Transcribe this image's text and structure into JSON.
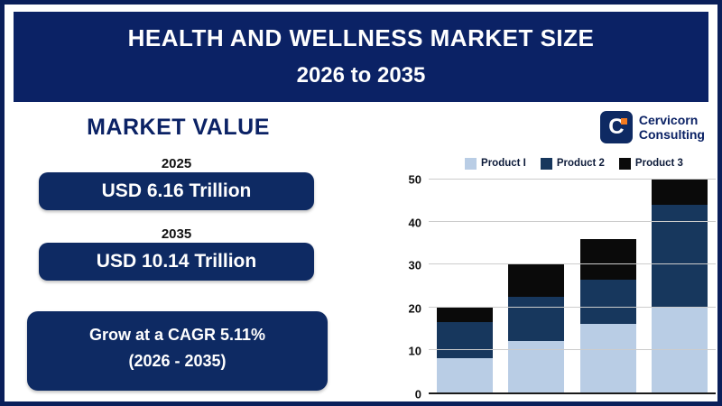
{
  "header": {
    "title_line1": "HEALTH AND WELLNESS MARKET SIZE",
    "title_line2": "2026 to 2035"
  },
  "left_panel": {
    "heading": "MARKET VALUE",
    "items": [
      {
        "year": "2025",
        "value": "USD 6.16 Trillion"
      },
      {
        "year": "2035",
        "value": "USD 10.14 Trillion"
      }
    ],
    "cagr_line1": "Grow at a CAGR 5.11%",
    "cagr_line2": "(2026 - 2035)"
  },
  "logo": {
    "initial": "C",
    "name_line1": "Cervicorn",
    "name_line2": "Consulting"
  },
  "colors": {
    "navy": "#0b2265",
    "pill_navy": "#0e2a63",
    "orange_accent": "#f47b20",
    "light_blue": "#b9cde5",
    "dark_blue": "#17375d",
    "black": "#0a0a0a"
  },
  "chart_data": {
    "type": "bar",
    "stacked": true,
    "categories": [
      "",
      "",
      "",
      ""
    ],
    "series": [
      {
        "name": "Product I",
        "color": "#b9cde5",
        "values": [
          8,
          12,
          16,
          20
        ]
      },
      {
        "name": "Product 2",
        "color": "#17375d",
        "values": [
          8.5,
          10.5,
          10.5,
          24
        ]
      },
      {
        "name": "Product 3",
        "color": "#0a0a0a",
        "values": [
          3.5,
          7.5,
          9.5,
          6
        ]
      }
    ],
    "title": "",
    "xlabel": "",
    "ylabel": "",
    "ylim": [
      0,
      50
    ],
    "yticks": [
      0,
      10,
      20,
      30,
      40,
      50
    ],
    "grid": true,
    "legend_position": "top"
  }
}
